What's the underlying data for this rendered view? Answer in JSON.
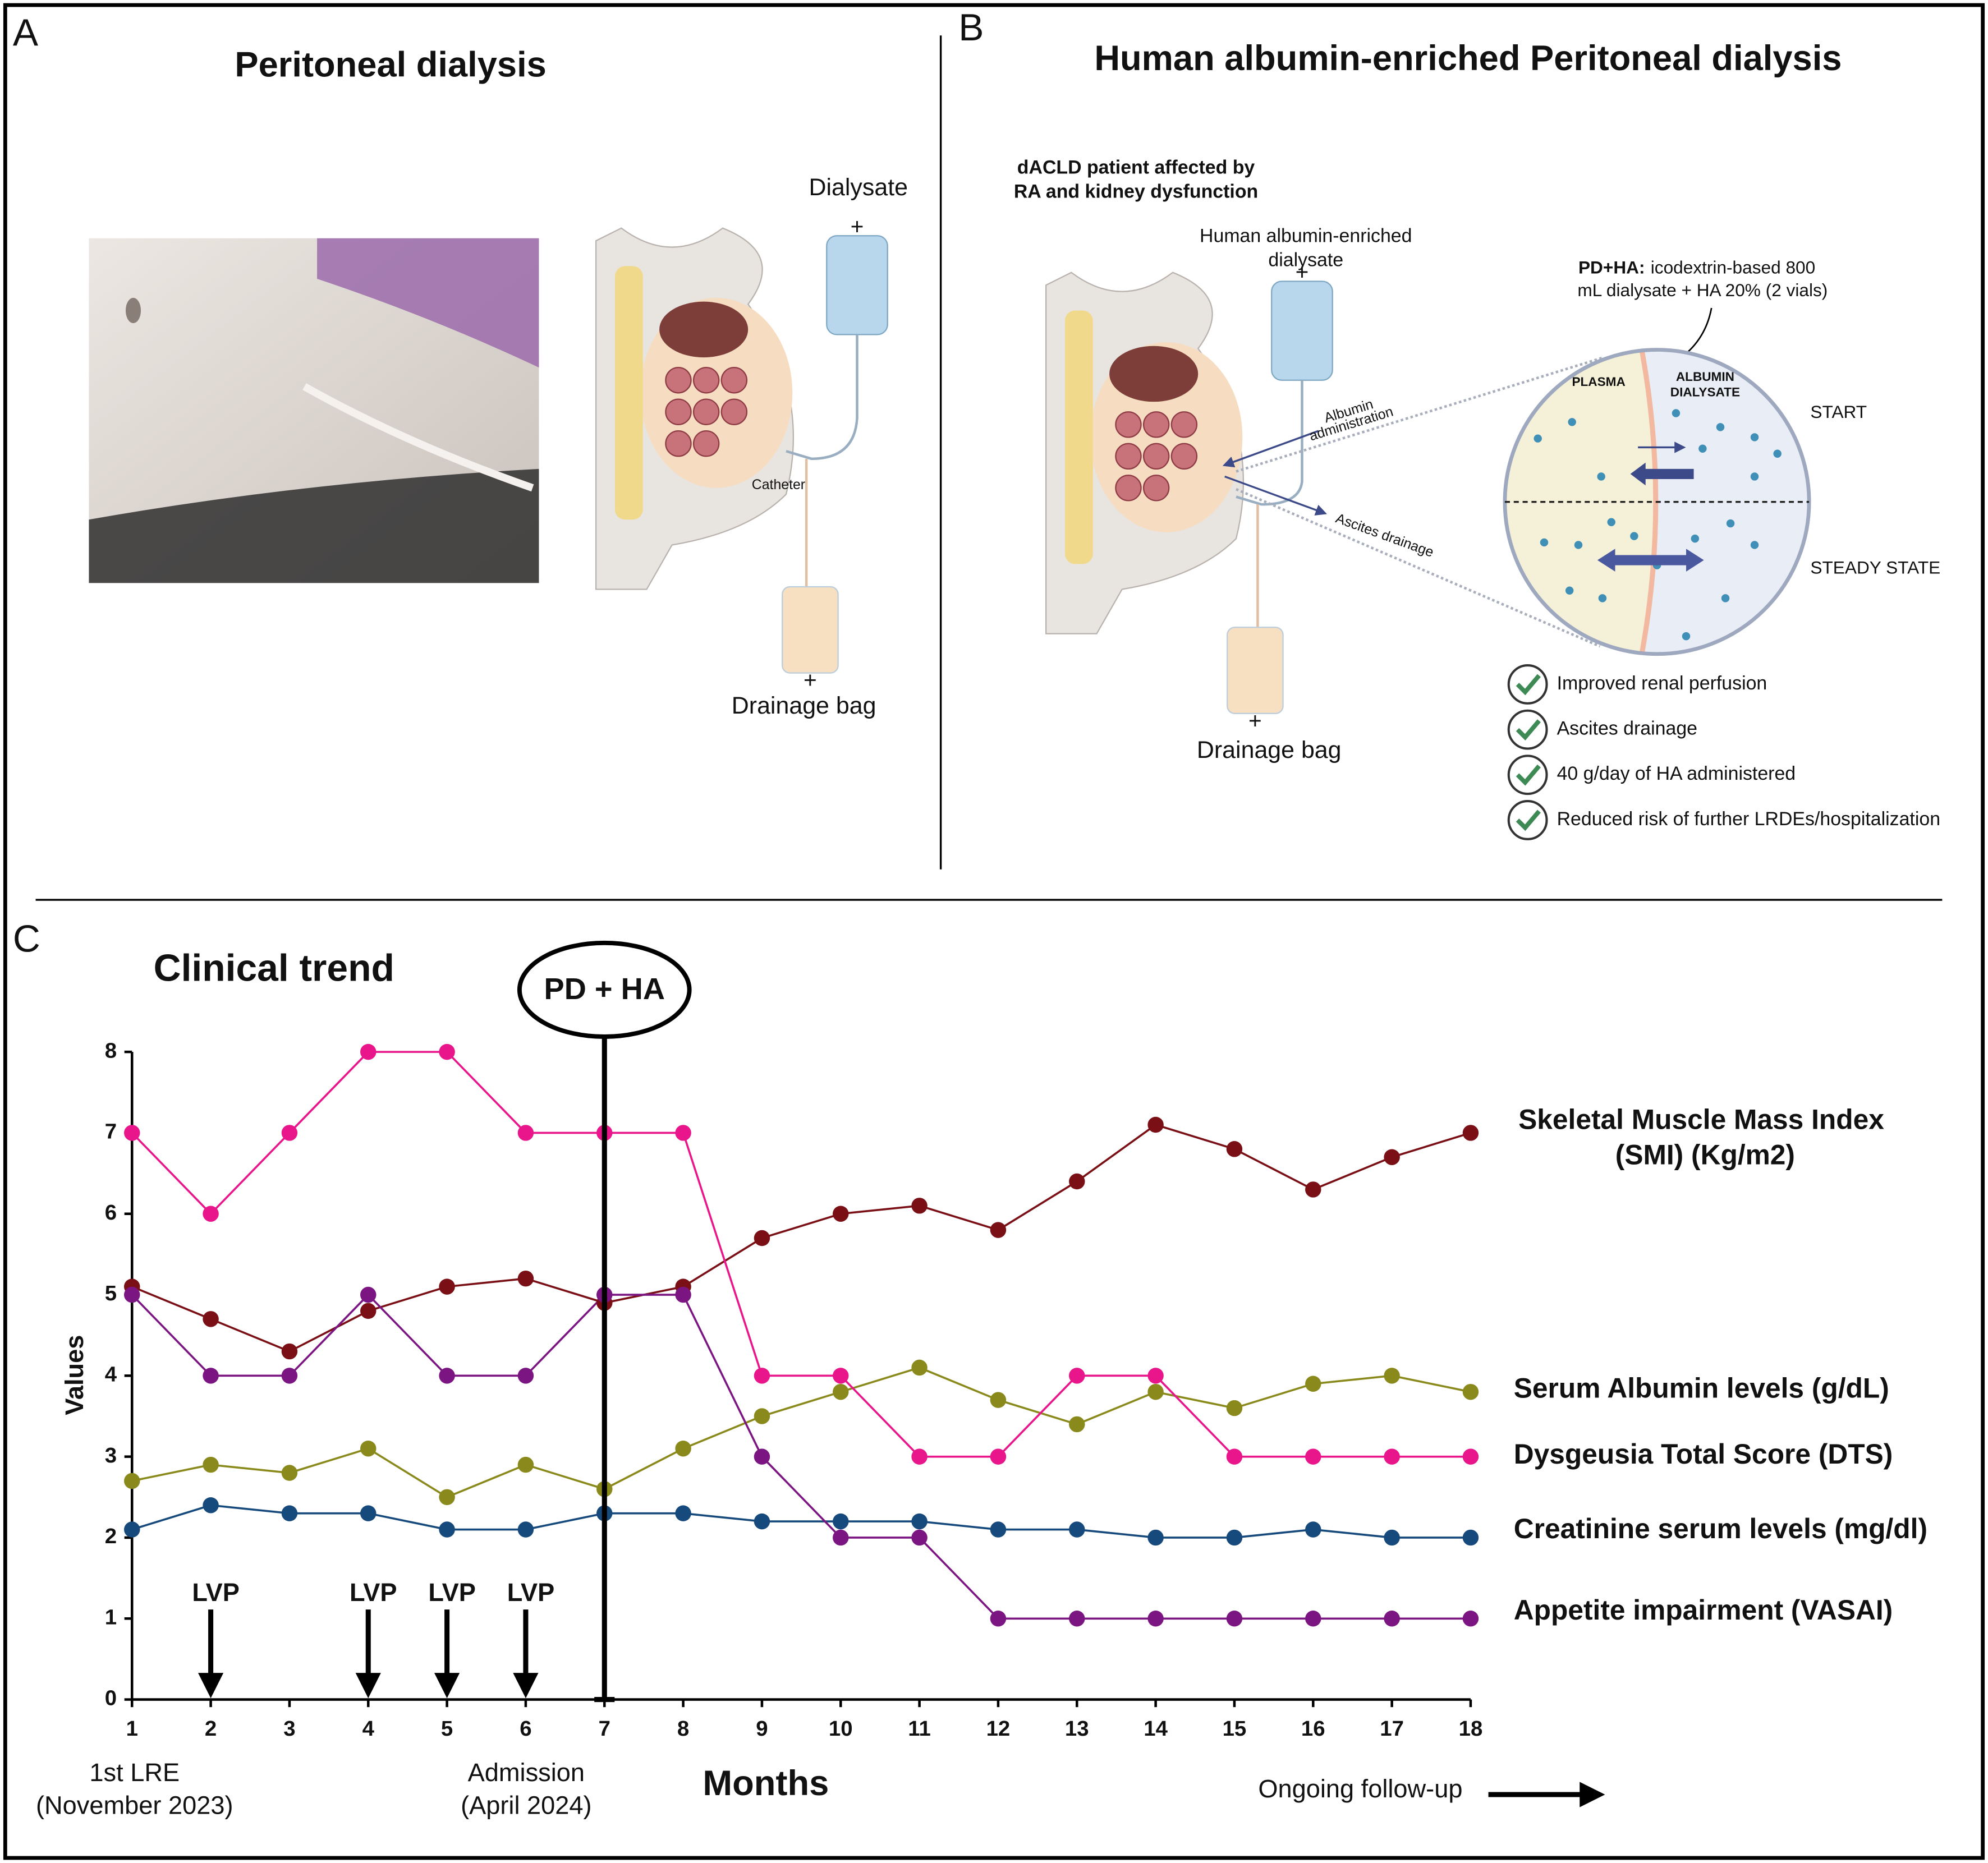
{
  "panel_a": {
    "label": "A",
    "title": "Peritoneal dialysis",
    "dialysate": "Dialysate",
    "catheter": "Catheter",
    "drainage_bag": "Drainage bag"
  },
  "panel_b": {
    "label": "B",
    "title": "Human albumin-enriched Peritoneal dialysis",
    "patient_lines": [
      "dACLD patient affected by",
      "RA and kidney dysfunction"
    ],
    "dialysate_lines": [
      "Human albumin-enriched",
      "dialysate"
    ],
    "albumin_lines": [
      "Albumin",
      "administration"
    ],
    "ascites": "Ascites drainage",
    "drainage_bag": "Drainage bag",
    "pdha_label": "PD+HA:",
    "pdha_lines": [
      "icodextrin-based 800",
      "mL dialysate + HA 20% (2 vials)"
    ],
    "plasma": "PLASMA",
    "albumin_dialysate_lines": [
      "ALBUMIN",
      "DIALYSATE"
    ],
    "start": "START",
    "steady_state": "STEADY STATE",
    "checklist": [
      "Improved renal perfusion",
      "Ascites drainage",
      "40 g/day of HA administered",
      "Reduced risk of further LRDEs/hospitalization"
    ]
  },
  "chart_data": {
    "type": "line",
    "panel_label": "C",
    "title": "Clinical trend",
    "x_label": "Months",
    "y_label": "Values",
    "x": [
      1,
      2,
      3,
      4,
      5,
      6,
      7,
      8,
      9,
      10,
      11,
      12,
      13,
      14,
      15,
      16,
      17,
      18
    ],
    "xlim": [
      1,
      18
    ],
    "xticks": [
      1,
      2,
      3,
      4,
      5,
      6,
      7,
      8,
      9,
      10,
      11,
      12,
      13,
      14,
      15,
      16,
      17,
      18
    ],
    "ylim": [
      0,
      8
    ],
    "yticks": [
      0,
      1,
      2,
      3,
      4,
      5,
      6,
      7,
      8
    ],
    "series": [
      {
        "name": "Skeletal Muscle Mass Index (SMI) (Kg/m2)",
        "color": "#7a1015",
        "values": [
          5.1,
          4.7,
          4.3,
          4.8,
          5.1,
          5.2,
          4.9,
          5.1,
          5.7,
          6.0,
          6.1,
          5.8,
          6.4,
          7.1,
          6.8,
          6.3,
          6.7,
          7.0
        ]
      },
      {
        "name": "Serum Albumin levels (g/dL)",
        "color": "#8a8a1c",
        "values": [
          2.7,
          2.9,
          2.8,
          3.1,
          2.5,
          2.9,
          2.6,
          3.1,
          3.5,
          3.8,
          4.1,
          3.7,
          3.4,
          3.8,
          3.6,
          3.9,
          4.0,
          3.8
        ]
      },
      {
        "name": "Dysgeusia Total Score (DTS)",
        "color": "#e8168a",
        "values": [
          7,
          6,
          7,
          8,
          8,
          7,
          7,
          7,
          4,
          4,
          3,
          3,
          4,
          4,
          3,
          3,
          3,
          3
        ]
      },
      {
        "name": "Creatinine serum levels (mg/dl)",
        "color": "#174a7c",
        "values": [
          2.1,
          2.4,
          2.3,
          2.3,
          2.1,
          2.1,
          2.3,
          2.3,
          2.2,
          2.2,
          2.2,
          2.1,
          2.1,
          2.0,
          2.0,
          2.1,
          2.0,
          2.0
        ]
      },
      {
        "name": "Appetite impairment (VASAI)",
        "color": "#7b1582",
        "values": [
          5,
          4,
          4,
          5,
          4,
          4,
          5,
          5,
          3,
          2,
          2,
          1,
          1,
          1,
          1,
          1,
          1,
          1
        ]
      }
    ],
    "annotations": {
      "pd_ha": {
        "label": "PD + HA",
        "x": 7
      },
      "lvp": {
        "label": "LVP",
        "x": [
          2,
          4,
          5,
          6
        ]
      },
      "first_lre_lines": [
        "1st LRE",
        "(November 2023)"
      ],
      "admission_lines": [
        "Admission",
        "(April 2024)"
      ],
      "follow_up": "Ongoing follow-up"
    }
  }
}
